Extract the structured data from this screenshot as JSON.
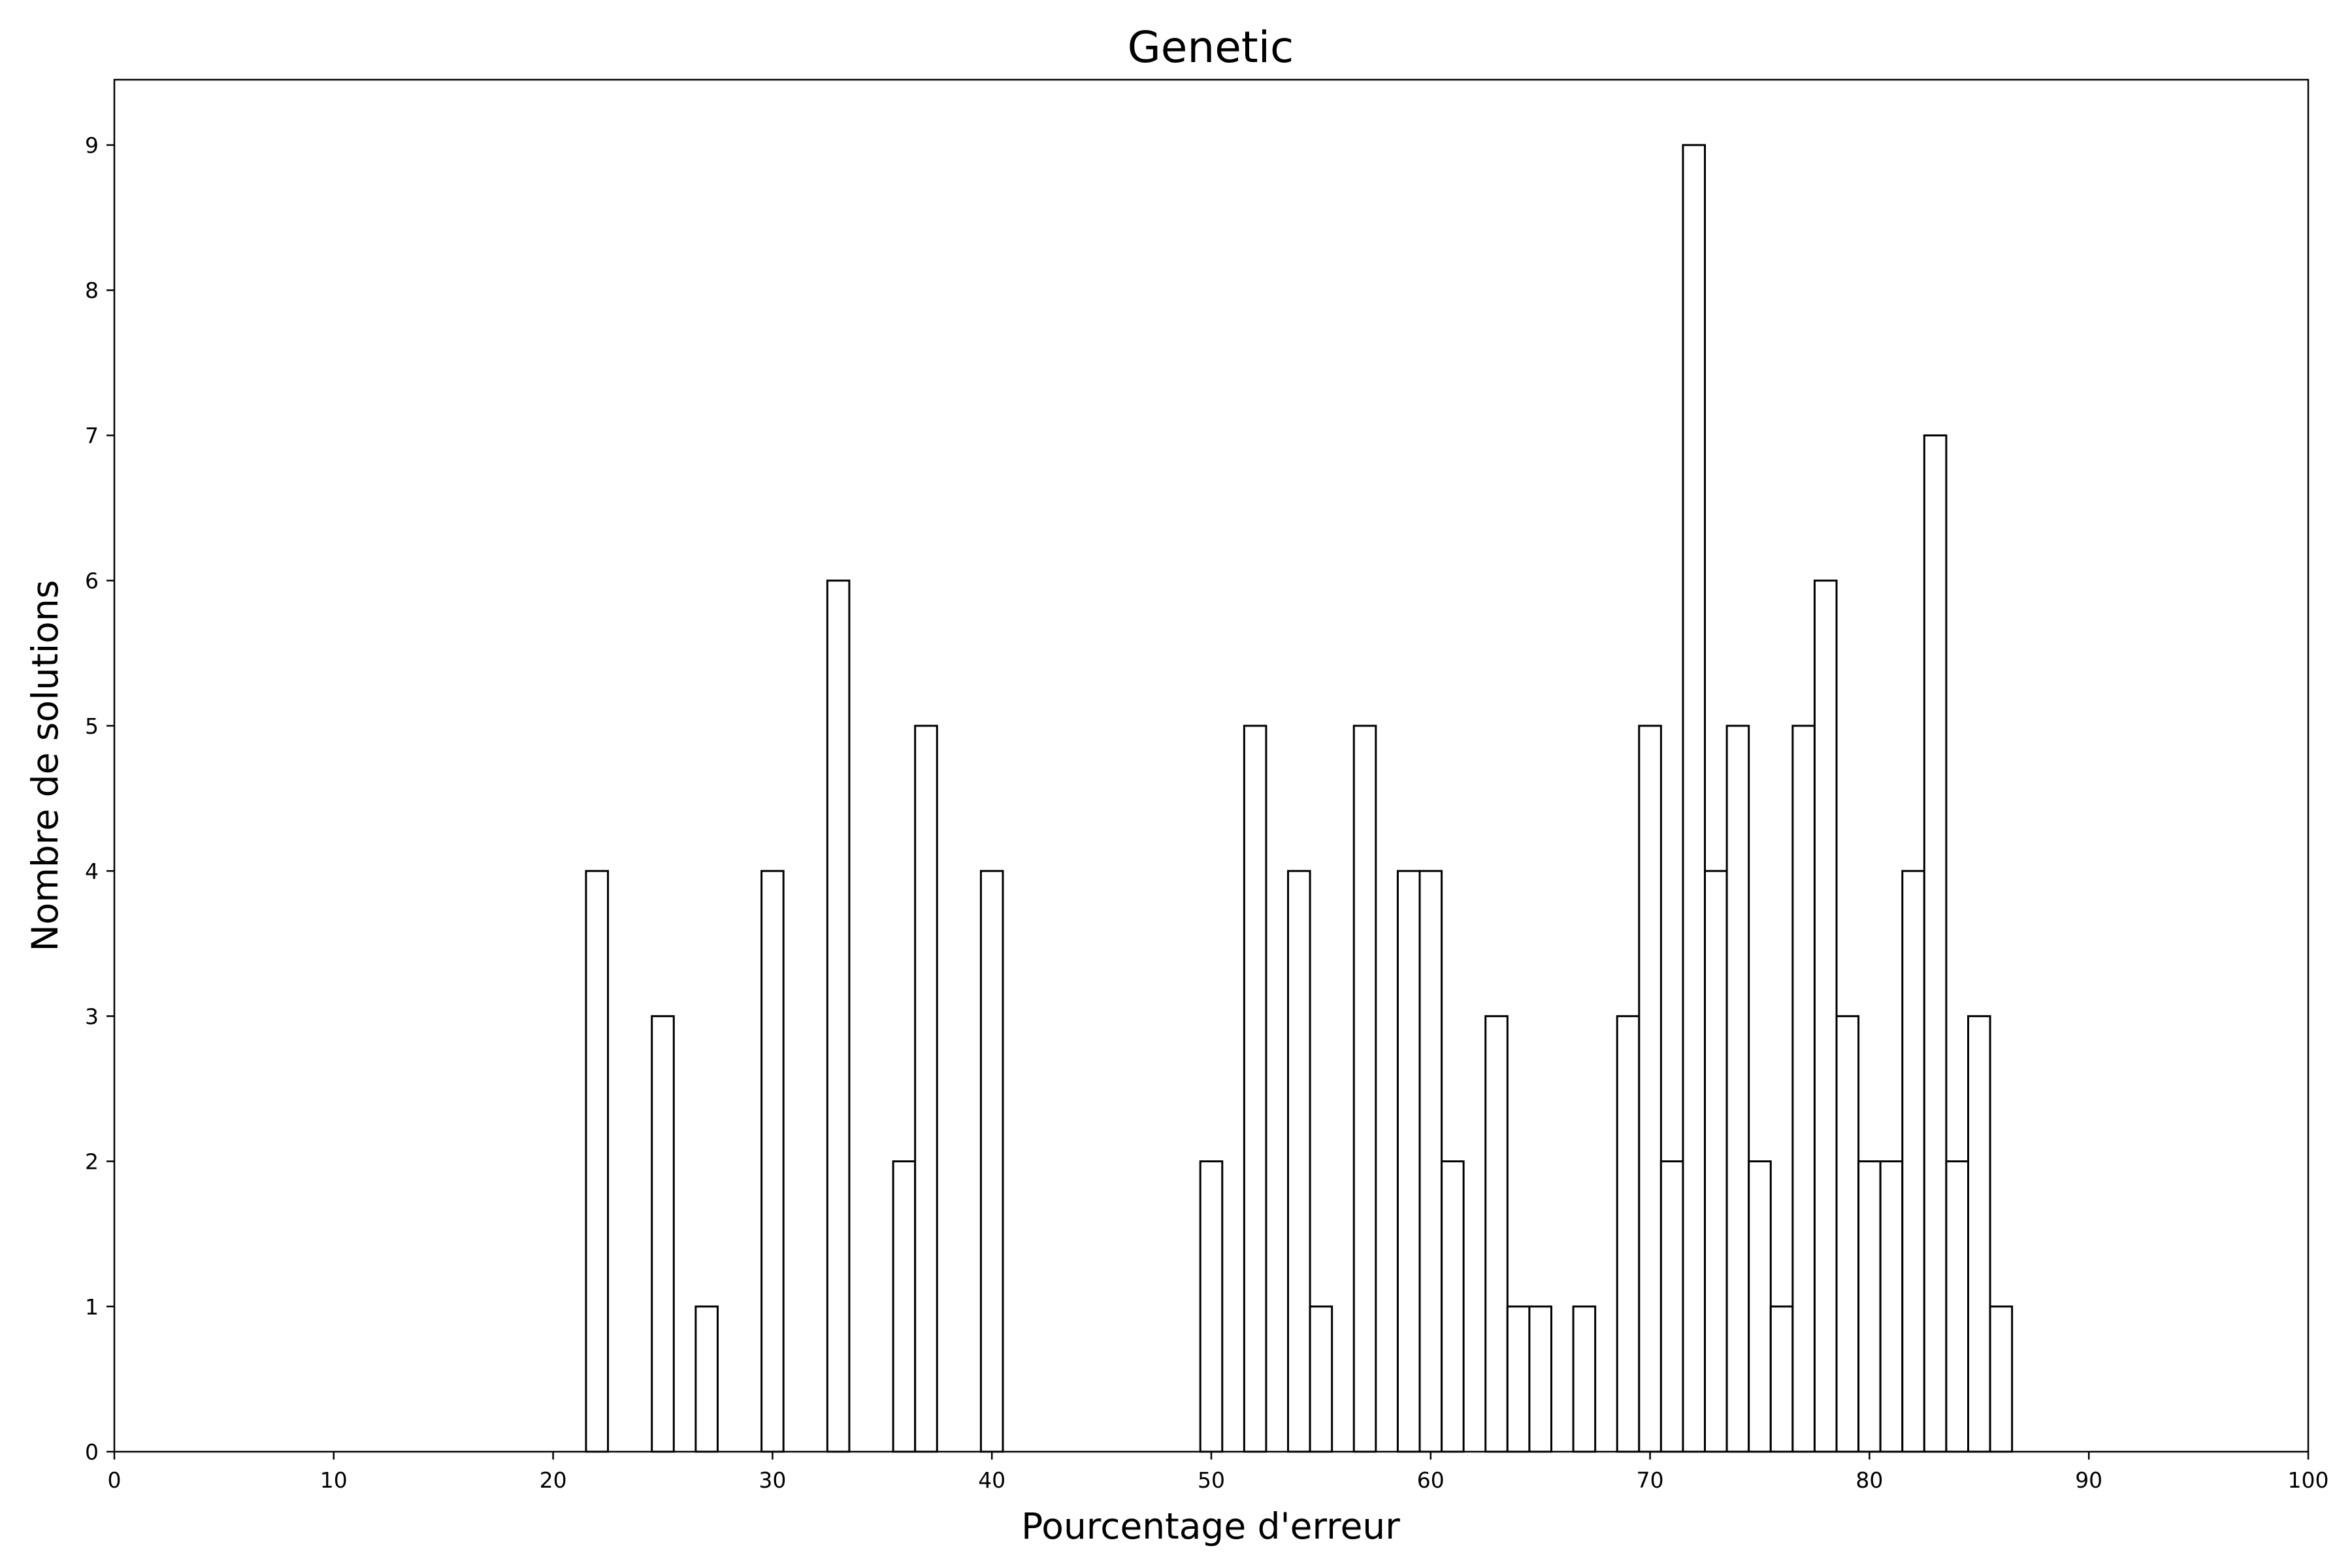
{
  "chart_data": {
    "type": "bar",
    "title": "Genetic",
    "xlabel": "Pourcentage d'erreur",
    "ylabel": "Nombre de solutions",
    "xlim": [
      0,
      100
    ],
    "ylim": [
      0,
      9.45
    ],
    "xticks": [
      "0",
      "10",
      "20",
      "30",
      "40",
      "50",
      "60",
      "70",
      "80",
      "90",
      "100"
    ],
    "yticks": [
      "0",
      "1",
      "2",
      "3",
      "4",
      "5",
      "6",
      "7",
      "8",
      "9"
    ],
    "grid": false,
    "legend": "none",
    "bar_fill": "#ffffff",
    "bar_edge": "#000000",
    "bin_width": 1,
    "bins": [
      {
        "x": 22,
        "count": 4
      },
      {
        "x": 25,
        "count": 3
      },
      {
        "x": 27,
        "count": 1
      },
      {
        "x": 30,
        "count": 4
      },
      {
        "x": 33,
        "count": 6
      },
      {
        "x": 36,
        "count": 2
      },
      {
        "x": 37,
        "count": 5
      },
      {
        "x": 40,
        "count": 4
      },
      {
        "x": 50,
        "count": 2
      },
      {
        "x": 52,
        "count": 5
      },
      {
        "x": 54,
        "count": 4
      },
      {
        "x": 55,
        "count": 1
      },
      {
        "x": 57,
        "count": 5
      },
      {
        "x": 59,
        "count": 4
      },
      {
        "x": 60,
        "count": 4
      },
      {
        "x": 61,
        "count": 2
      },
      {
        "x": 63,
        "count": 3
      },
      {
        "x": 64,
        "count": 1
      },
      {
        "x": 65,
        "count": 1
      },
      {
        "x": 67,
        "count": 1
      },
      {
        "x": 69,
        "count": 3
      },
      {
        "x": 70,
        "count": 5
      },
      {
        "x": 71,
        "count": 2
      },
      {
        "x": 72,
        "count": 9
      },
      {
        "x": 73,
        "count": 4
      },
      {
        "x": 74,
        "count": 5
      },
      {
        "x": 75,
        "count": 2
      },
      {
        "x": 76,
        "count": 1
      },
      {
        "x": 77,
        "count": 5
      },
      {
        "x": 78,
        "count": 6
      },
      {
        "x": 79,
        "count": 3
      },
      {
        "x": 80,
        "count": 2
      },
      {
        "x": 81,
        "count": 2
      },
      {
        "x": 82,
        "count": 4
      },
      {
        "x": 83,
        "count": 7
      },
      {
        "x": 84,
        "count": 2
      },
      {
        "x": 85,
        "count": 3
      },
      {
        "x": 86,
        "count": 1
      }
    ]
  }
}
